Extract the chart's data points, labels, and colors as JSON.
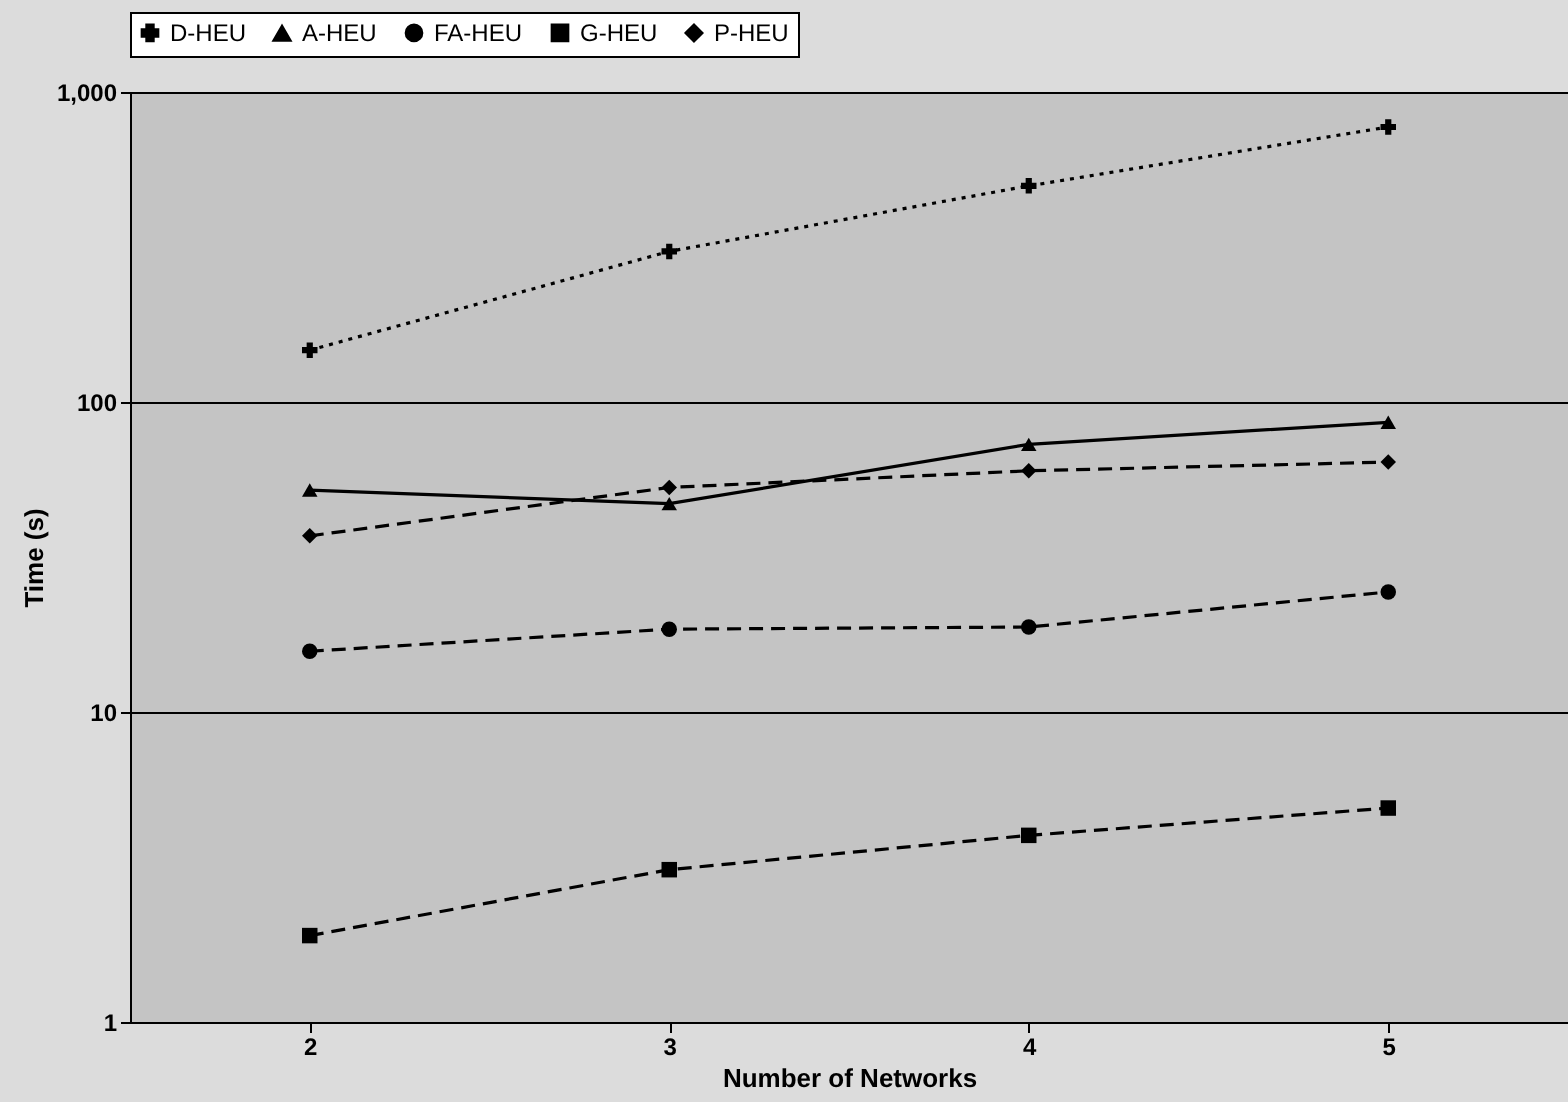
{
  "chart_data": {
    "type": "line",
    "xlabel": "Number of Networks",
    "ylabel": "Time (s)",
    "categories": [
      "2",
      "3",
      "4",
      "5"
    ],
    "series": [
      {
        "name": "D-HEU",
        "color": "#000000",
        "marker": "cross",
        "line_style": "dotted",
        "values": [
          147,
          306,
          498,
          771
        ]
      },
      {
        "name": "A-HEU",
        "color": "#000000",
        "marker": "triangle",
        "line_style": "solid",
        "values": [
          52,
          47,
          73,
          86
        ]
      },
      {
        "name": "FA-HEU",
        "color": "#000000",
        "marker": "circle",
        "line_style": "dashed",
        "values": [
          15.7,
          18.5,
          18.8,
          24.4
        ]
      },
      {
        "name": "G-HEU",
        "color": "#000000",
        "marker": "square",
        "line_style": "dashed",
        "values": [
          1.9,
          3.1,
          4.0,
          4.9
        ]
      },
      {
        "name": "P-HEU",
        "color": "#000000",
        "marker": "diamond",
        "line_style": "dashed",
        "values": [
          37,
          53,
          60,
          64
        ]
      }
    ],
    "log": true,
    "ylim": [
      1,
      1000
    ],
    "yticks": [
      1,
      10,
      100,
      {
        "value": 1000,
        "label": "1,000"
      }
    ],
    "grid": "y",
    "legend": "top"
  }
}
